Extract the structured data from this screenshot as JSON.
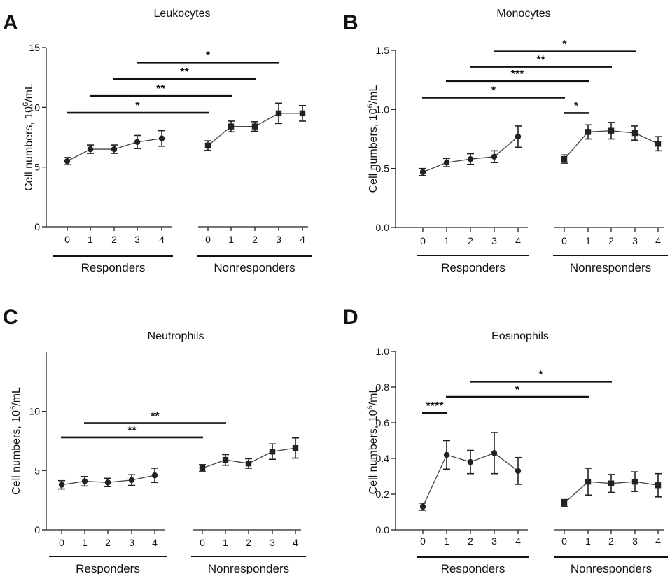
{
  "figure": {
    "sup_text": "6",
    "groups": [
      "Responders",
      "Nonresponders"
    ]
  },
  "chart_data": [
    {
      "panel": "A",
      "type": "line",
      "title": "Leukocytes",
      "ylabel": "Cell numbers, 10^6/mL",
      "ylim": [
        0,
        15
      ],
      "yticks": [
        0,
        5,
        10,
        15
      ],
      "yticklabels": [
        "0",
        "5",
        "10",
        "15"
      ],
      "categories": [
        "0",
        "1",
        "2",
        "3",
        "4"
      ],
      "series": [
        {
          "group": "Responders",
          "marker": "circle",
          "values": [
            5.5,
            6.5,
            6.5,
            7.1,
            7.4
          ],
          "err": [
            0.3,
            0.35,
            0.35,
            0.55,
            0.65
          ]
        },
        {
          "group": "Nonresponders",
          "marker": "square",
          "values": [
            6.8,
            8.4,
            8.4,
            9.5,
            9.5
          ],
          "err": [
            0.4,
            0.45,
            0.4,
            0.85,
            0.65
          ]
        }
      ],
      "significance": [
        {
          "from": [
            "Responders",
            0
          ],
          "to": [
            "Nonresponders",
            0
          ],
          "y": 9.55,
          "label": "*"
        },
        {
          "from": [
            "Responders",
            1
          ],
          "to": [
            "Nonresponders",
            1
          ],
          "y": 10.95,
          "label": "**"
        },
        {
          "from": [
            "Responders",
            2
          ],
          "to": [
            "Nonresponders",
            2
          ],
          "y": 12.35,
          "label": "**"
        },
        {
          "from": [
            "Responders",
            3
          ],
          "to": [
            "Nonresponders",
            3
          ],
          "y": 13.75,
          "label": "*"
        }
      ]
    },
    {
      "panel": "B",
      "type": "line",
      "title": "Monocytes",
      "ylabel": "Cell numbers, 10^6/mL",
      "ylim": [
        0,
        1.5
      ],
      "yticks": [
        0,
        0.5,
        1.0,
        1.5
      ],
      "yticklabels": [
        "0.0",
        "0.5",
        "1.0",
        "1.5"
      ],
      "categories": [
        "0",
        "1",
        "2",
        "3",
        "4"
      ],
      "series": [
        {
          "group": "Responders",
          "marker": "circle",
          "values": [
            0.47,
            0.55,
            0.58,
            0.6,
            0.77
          ],
          "err": [
            0.03,
            0.035,
            0.045,
            0.05,
            0.09
          ]
        },
        {
          "group": "Nonresponders",
          "marker": "square",
          "values": [
            0.58,
            0.81,
            0.82,
            0.8,
            0.71
          ],
          "err": [
            0.035,
            0.06,
            0.07,
            0.06,
            0.06
          ]
        }
      ],
      "significance": [
        {
          "from": [
            "Responders",
            0
          ],
          "to": [
            "Nonresponders",
            0
          ],
          "y": 1.1,
          "label": "*"
        },
        {
          "from": [
            "Nonresponders",
            0
          ],
          "to": [
            "Nonresponders",
            1
          ],
          "y": 0.97,
          "label": "*"
        },
        {
          "from": [
            "Responders",
            1
          ],
          "to": [
            "Nonresponders",
            1
          ],
          "y": 1.24,
          "label": "***"
        },
        {
          "from": [
            "Responders",
            2
          ],
          "to": [
            "Nonresponders",
            2
          ],
          "y": 1.36,
          "label": "**"
        },
        {
          "from": [
            "Responders",
            3
          ],
          "to": [
            "Nonresponders",
            3
          ],
          "y": 1.49,
          "label": "*"
        }
      ]
    },
    {
      "panel": "C",
      "type": "line",
      "title": "Neutrophils",
      "ylabel": "Cell numbers, 10^6/mL",
      "ylim": [
        0,
        15
      ],
      "yticks": [
        0,
        5,
        10
      ],
      "yticklabels": [
        "0",
        "5",
        "10"
      ],
      "categories": [
        "0",
        "1",
        "2",
        "3",
        "4"
      ],
      "series": [
        {
          "group": "Responders",
          "marker": "circle",
          "values": [
            3.8,
            4.1,
            4.0,
            4.2,
            4.6
          ],
          "err": [
            0.35,
            0.4,
            0.35,
            0.45,
            0.6
          ]
        },
        {
          "group": "Nonresponders",
          "marker": "square",
          "values": [
            5.2,
            5.9,
            5.6,
            6.6,
            6.9
          ],
          "err": [
            0.3,
            0.45,
            0.4,
            0.65,
            0.85
          ]
        }
      ],
      "significance": [
        {
          "from": [
            "Responders",
            0
          ],
          "to": [
            "Nonresponders",
            0
          ],
          "y": 7.8,
          "label": "**"
        },
        {
          "from": [
            "Responders",
            1
          ],
          "to": [
            "Nonresponders",
            1
          ],
          "y": 9.0,
          "label": "**"
        }
      ]
    },
    {
      "panel": "D",
      "type": "line",
      "title": "Eosinophils",
      "ylabel": "Cell numbers, 10^6/mL",
      "ylim": [
        0,
        1.0
      ],
      "yticks": [
        0,
        0.2,
        0.4,
        0.6,
        0.8,
        1.0
      ],
      "yticklabels": [
        "0.0",
        "0.2",
        "0.4",
        "0.6",
        "0.8",
        "1.0"
      ],
      "categories": [
        "0",
        "1",
        "2",
        "3",
        "4"
      ],
      "series": [
        {
          "group": "Responders",
          "marker": "circle",
          "values": [
            0.13,
            0.42,
            0.38,
            0.43,
            0.33
          ],
          "err": [
            0.02,
            0.08,
            0.065,
            0.115,
            0.075
          ]
        },
        {
          "group": "Nonresponders",
          "marker": "square",
          "values": [
            0.15,
            0.27,
            0.26,
            0.27,
            0.25
          ],
          "err": [
            0.02,
            0.075,
            0.05,
            0.055,
            0.065
          ]
        }
      ],
      "significance": [
        {
          "from": [
            "Responders",
            0
          ],
          "to": [
            "Responders",
            1
          ],
          "y": 0.655,
          "label": "****"
        },
        {
          "from": [
            "Responders",
            1
          ],
          "to": [
            "Nonresponders",
            1
          ],
          "y": 0.745,
          "label": "*"
        },
        {
          "from": [
            "Responders",
            2
          ],
          "to": [
            "Nonresponders",
            2
          ],
          "y": 0.83,
          "label": "*"
        }
      ]
    }
  ]
}
